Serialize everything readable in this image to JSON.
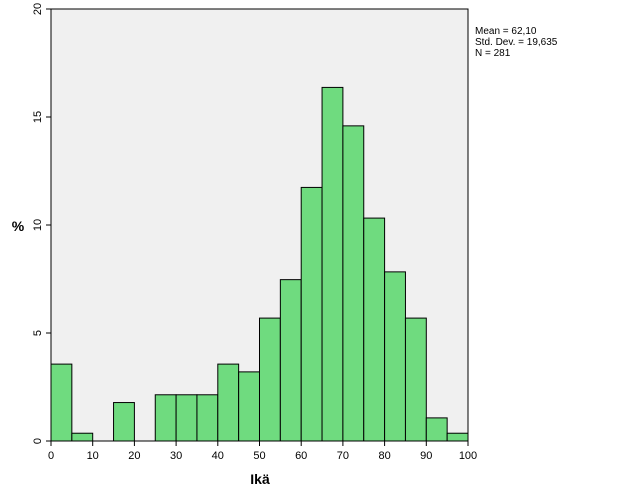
{
  "chart_data": {
    "type": "bar",
    "subtype": "histogram",
    "xlabel": "Ikä",
    "ylabel": "%",
    "xlim": [
      0,
      100
    ],
    "ylim": [
      0,
      20
    ],
    "xticks": [
      0,
      10,
      20,
      30,
      40,
      50,
      60,
      70,
      80,
      90,
      100
    ],
    "yticks": [
      0,
      5,
      10,
      15,
      20
    ],
    "bin_width": 5,
    "bins_start": [
      0,
      5,
      10,
      15,
      20,
      25,
      30,
      35,
      40,
      45,
      50,
      55,
      60,
      65,
      70,
      75,
      80,
      85,
      90,
      95
    ],
    "values": [
      3.56,
      0.36,
      0,
      1.78,
      0,
      2.14,
      2.14,
      2.14,
      3.56,
      3.2,
      5.69,
      7.47,
      11.74,
      16.37,
      14.59,
      10.32,
      7.83,
      5.69,
      1.07,
      0.36
    ],
    "bar_color": "#6fdb7f",
    "plot_background": "#f0f0f0",
    "grid": false,
    "legend": "none"
  },
  "stats": {
    "mean": "Mean = 62,10",
    "std": "Std. Dev. = 19,635",
    "n": "N = 281"
  }
}
